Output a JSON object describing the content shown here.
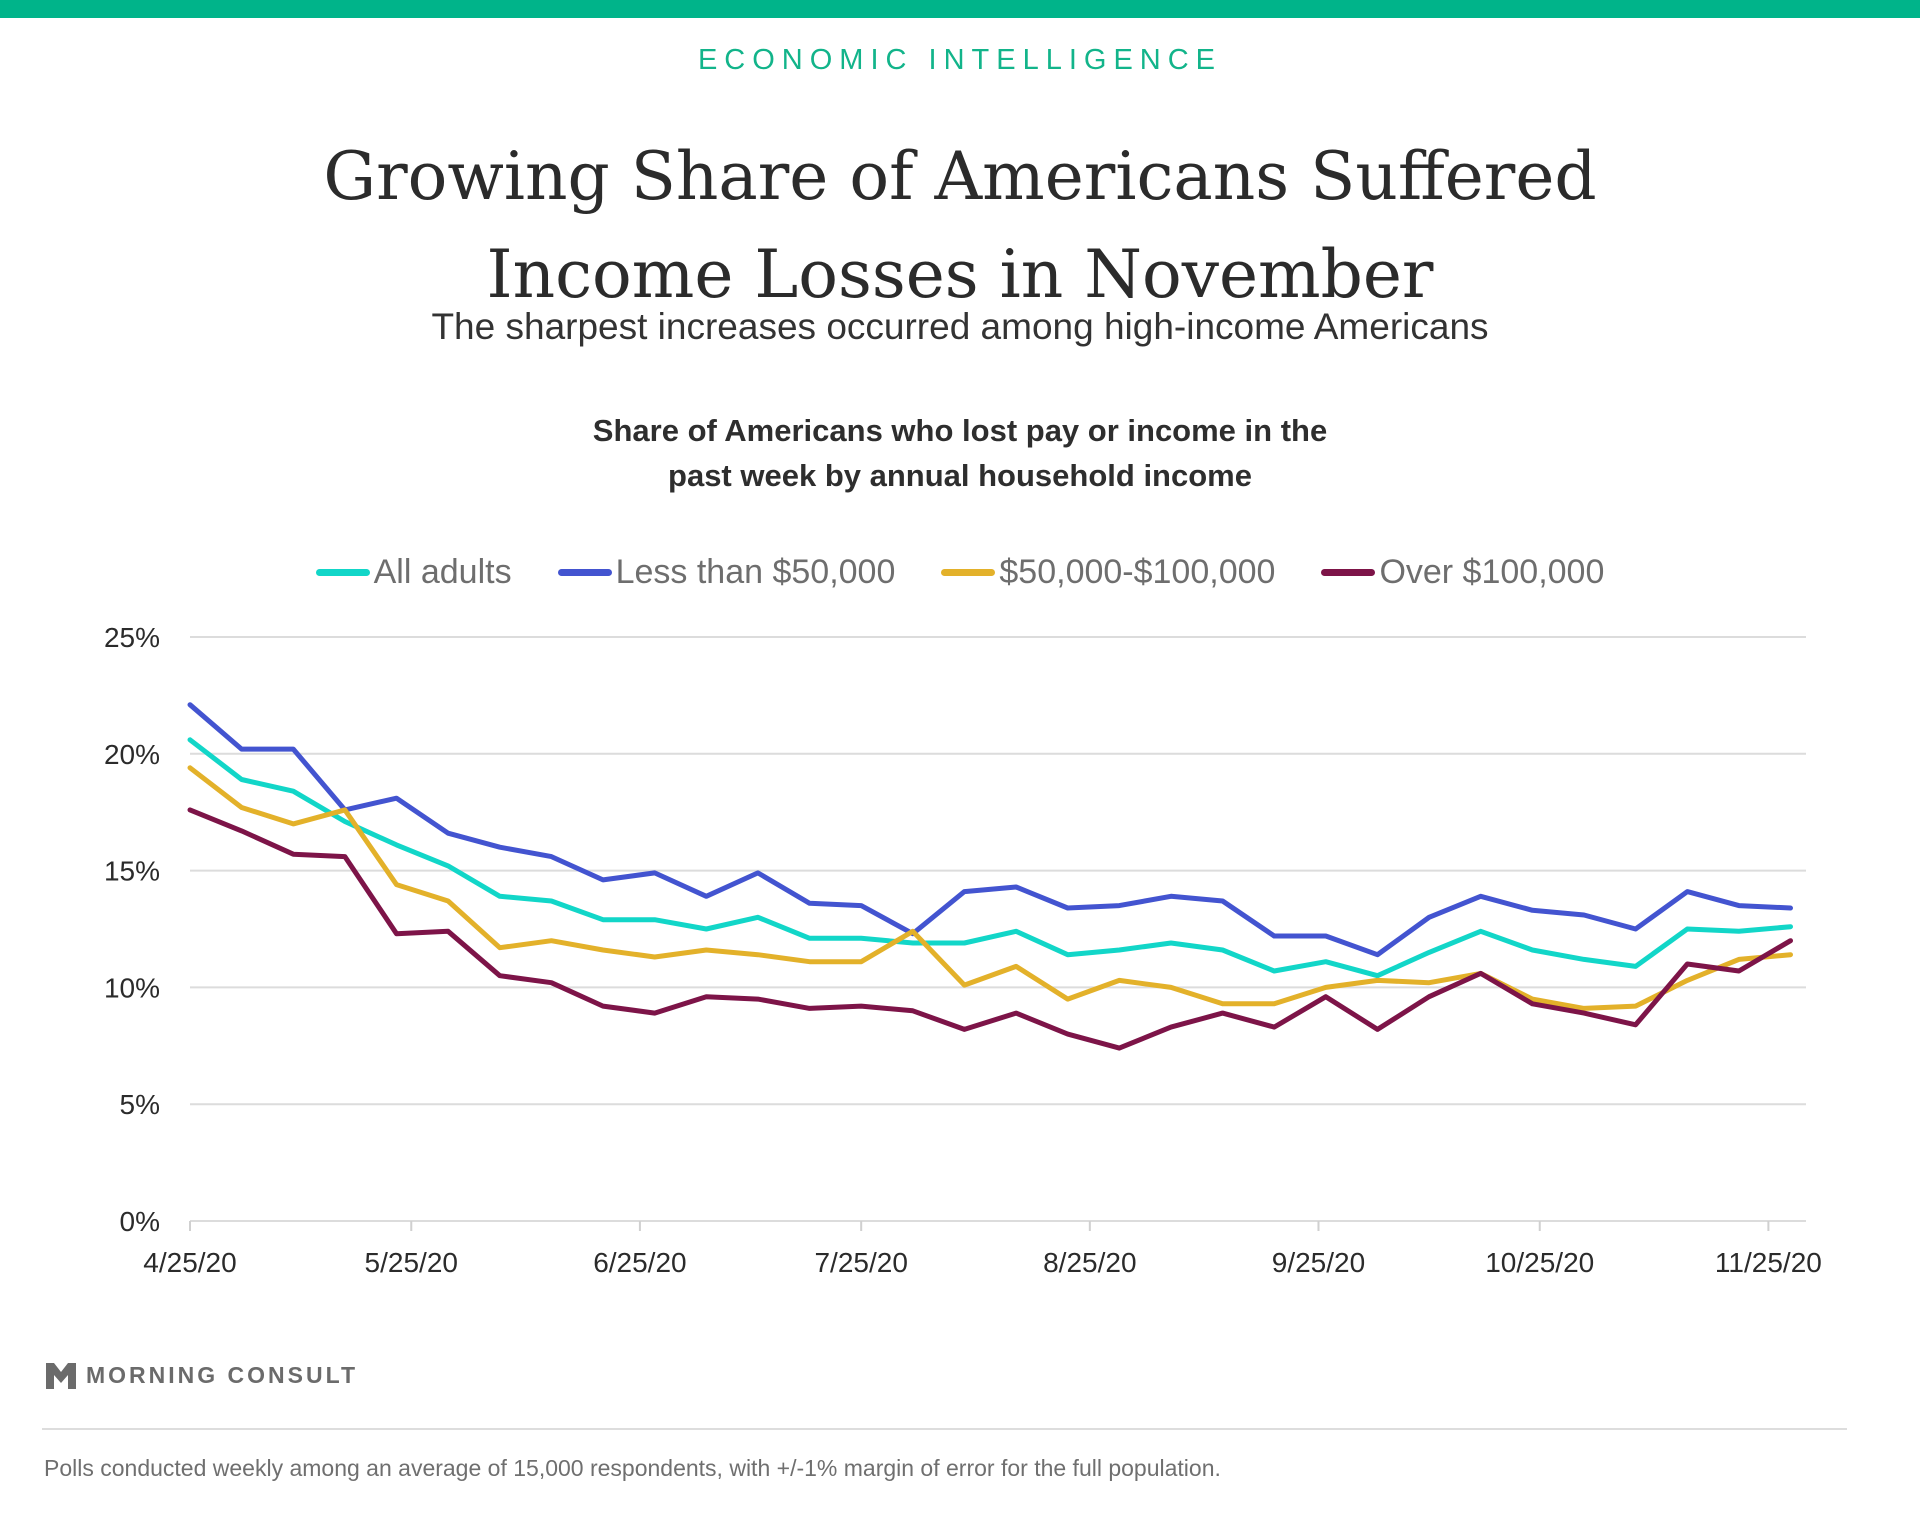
{
  "header": {
    "kicker": "ECONOMIC INTELLIGENCE",
    "title_line1": "Growing Share of Americans Suffered",
    "title_line2": "Income Losses in November",
    "subtitle": "The sharpest increases occurred among high-income Americans"
  },
  "chart_title_line1": "Share of Americans who lost pay or income in the",
  "chart_title_line2": "past week by annual household income",
  "colors": {
    "accent": "#00b48a",
    "all_adults": "#12d6c8",
    "less_than_50k": "#4354d0",
    "mid_income": "#e3b12a",
    "over_100k": "#7d1448"
  },
  "chart_data": {
    "type": "line",
    "title": "Share of Americans who lost pay or income in the past week by annual household income",
    "xlabel": "",
    "ylabel": "",
    "ylim": [
      0,
      25
    ],
    "yticks": [
      0,
      5,
      10,
      15,
      20,
      25
    ],
    "ytick_labels": [
      "0%",
      "5%",
      "10%",
      "15%",
      "20%",
      "25%"
    ],
    "xtick_labels": [
      "4/25/20",
      "5/25/20",
      "6/25/20",
      "7/25/20",
      "8/25/20",
      "9/25/20",
      "10/25/20",
      "11/25/20"
    ],
    "grid": true,
    "legend_position": "top-center",
    "x_points_count": 32,
    "series": [
      {
        "name": "All adults",
        "color": "#12d6c8",
        "values": [
          20.6,
          18.9,
          18.4,
          17.1,
          16.1,
          15.2,
          13.9,
          13.7,
          12.9,
          12.9,
          12.5,
          13.0,
          12.1,
          12.1,
          11.9,
          11.9,
          12.4,
          11.4,
          11.6,
          11.9,
          11.6,
          10.7,
          11.1,
          10.5,
          11.5,
          12.4,
          11.6,
          11.2,
          10.9,
          12.5,
          12.4,
          12.6
        ]
      },
      {
        "name": "Less than $50,000",
        "color": "#4354d0",
        "values": [
          22.1,
          20.2,
          20.2,
          17.6,
          18.1,
          16.6,
          16.0,
          15.6,
          14.6,
          14.9,
          13.9,
          14.9,
          13.6,
          13.5,
          12.3,
          14.1,
          14.3,
          13.4,
          13.5,
          13.9,
          13.7,
          12.2,
          12.2,
          11.4,
          13.0,
          13.9,
          13.3,
          13.1,
          12.5,
          14.1,
          13.5,
          13.4
        ]
      },
      {
        "name": "$50,000-$100,000",
        "color": "#e3b12a",
        "values": [
          19.4,
          17.7,
          17.0,
          17.6,
          14.4,
          13.7,
          11.7,
          12.0,
          11.6,
          11.3,
          11.6,
          11.4,
          11.1,
          11.1,
          12.4,
          10.1,
          10.9,
          9.5,
          10.3,
          10.0,
          9.3,
          9.3,
          10.0,
          10.3,
          10.2,
          10.6,
          9.5,
          9.1,
          9.2,
          10.3,
          11.2,
          11.4
        ]
      },
      {
        "name": "Over $100,000",
        "color": "#7d1448",
        "values": [
          17.6,
          16.7,
          15.7,
          15.6,
          12.3,
          12.4,
          10.5,
          10.2,
          9.2,
          8.9,
          9.6,
          9.5,
          9.1,
          9.2,
          9.0,
          8.2,
          8.9,
          8.0,
          7.4,
          8.3,
          8.9,
          8.3,
          9.6,
          8.2,
          9.6,
          10.6,
          9.3,
          8.9,
          8.4,
          11.0,
          10.7,
          12.0
        ]
      }
    ]
  },
  "footer": {
    "brand": "MORNING CONSULT",
    "note": "Polls conducted weekly among an average of 15,000 respondents, with +/-1% margin of error for the full population."
  }
}
